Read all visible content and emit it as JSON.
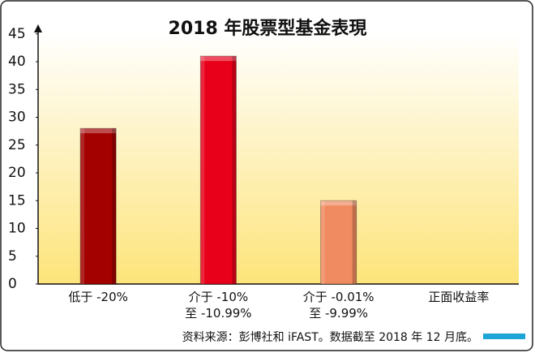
{
  "chart_data": {
    "type": "bar",
    "title": "2018 年股票型基金表現",
    "categories": [
      "低于 -20%",
      "介于 -10%\n至 -10.99%",
      "介于 -0.01%\n至 -9.99%",
      "正面收益率"
    ],
    "values": [
      28,
      41,
      15,
      0
    ],
    "colors": [
      "#a30000",
      "#e8001a",
      "#f08a60",
      "#e8001a"
    ],
    "ylim": [
      0,
      45
    ],
    "yticks": [
      0,
      5,
      10,
      15,
      20,
      25,
      30,
      35,
      40,
      45
    ],
    "source": "资料来源：彭博社和 iFAST。数据截至 2018 年 12 月底。"
  }
}
